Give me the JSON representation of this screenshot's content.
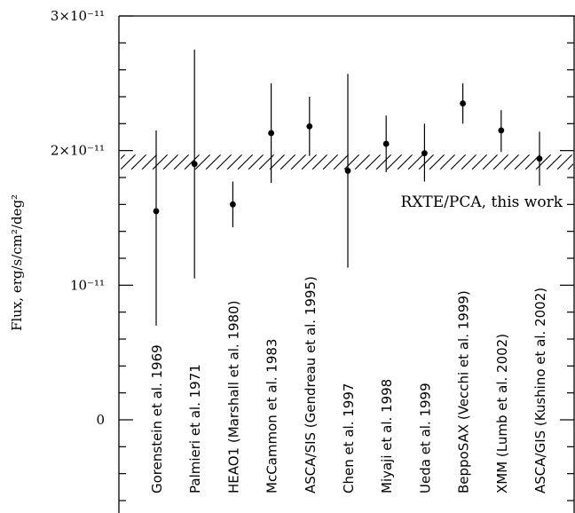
{
  "chart_data": {
    "type": "scatter",
    "title": "",
    "xlabel": "",
    "ylabel": "Flux, erg/s/cm²/deg²",
    "ylim": [
      -6.8e-12,
      3e-11
    ],
    "y_ticks": [
      {
        "value": 3e-11,
        "label": "3×10⁻¹¹"
      },
      {
        "value": 2e-11,
        "label": "2×10⁻¹¹"
      },
      {
        "value": 1e-11,
        "label": "10⁻¹¹"
      },
      {
        "value": 0,
        "label": "0"
      }
    ],
    "grid": false,
    "band": {
      "label": "RXTE/PCA, this work",
      "low": 1.86e-11,
      "high": 1.97e-11
    },
    "measurements": [
      {
        "label": "Gorenstein et al. 1969",
        "value": 1.55e-11,
        "err_low": 7e-12,
        "err_high": 2.15e-11
      },
      {
        "label": "Palmieri et al. 1971",
        "value": 1.9e-11,
        "err_low": 1.05e-11,
        "err_high": 2.75e-11
      },
      {
        "label": "HEAO1 (Marshall et al. 1980)",
        "value": 1.6e-11,
        "err_low": 1.43e-11,
        "err_high": 1.77e-11
      },
      {
        "label": "McCammon et al. 1983",
        "value": 2.13e-11,
        "err_low": 1.76e-11,
        "err_high": 2.5e-11
      },
      {
        "label": "ASCA/SIS (Gendreau et al. 1995)",
        "value": 2.18e-11,
        "err_low": 1.96e-11,
        "err_high": 2.4e-11
      },
      {
        "label": "Chen et al. 1997",
        "value": 1.85e-11,
        "err_low": 1.13e-11,
        "err_high": 2.57e-11
      },
      {
        "label": "Miyaji et al. 1998",
        "value": 2.05e-11,
        "err_low": 1.84e-11,
        "err_high": 2.26e-11
      },
      {
        "label": "Ueda et al. 1999",
        "value": 1.98e-11,
        "err_low": 1.77e-11,
        "err_high": 2.2e-11
      },
      {
        "label": "BeppoSAX (Vecchi et al. 1999)",
        "value": 2.35e-11,
        "err_low": 2.2e-11,
        "err_high": 2.5e-11
      },
      {
        "label": "XMM (Lumb et al. 2002)",
        "value": 2.15e-11,
        "err_low": 1.99e-11,
        "err_high": 2.3e-11
      },
      {
        "label": "ASCA/GIS (Kushino et al. 2002)",
        "value": 1.94e-11,
        "err_low": 1.74e-11,
        "err_high": 2.14e-11
      }
    ]
  }
}
